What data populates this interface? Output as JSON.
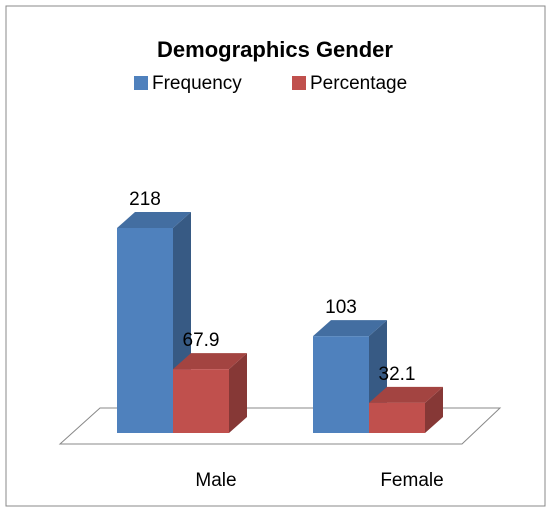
{
  "chart_data": {
    "type": "bar3d",
    "title": "Demographics Gender",
    "categories": [
      "Male",
      "Female"
    ],
    "series": [
      {
        "name": "Frequency",
        "color": "#4f81bd",
        "values": [
          218,
          103
        ]
      },
      {
        "name": "Percentage",
        "color": "#c0504d",
        "values": [
          67.9,
          32.1
        ]
      }
    ],
    "legend": "top",
    "grid": false
  }
}
